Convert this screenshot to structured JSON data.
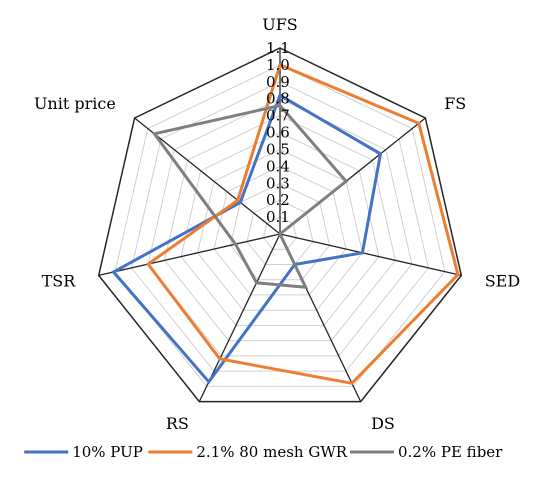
{
  "chart_data": {
    "type": "radar",
    "axes": [
      "UFS",
      "FS",
      "SED",
      "DS",
      "RS",
      "TSR",
      "Unit price"
    ],
    "ticks": [
      "0.1",
      "0.2",
      "0.3",
      "0.4",
      "0.5",
      "0.6",
      "0.7",
      "0.8",
      "0.9",
      "1.0",
      "1.1"
    ],
    "range": [
      0,
      1.1
    ],
    "grid": true,
    "legend_position": "bottom",
    "series": [
      {
        "name": "10% PUP",
        "color": "#4472C4",
        "values": [
          0.82,
          0.76,
          0.5,
          0.2,
          0.97,
          1.01,
          0.3
        ]
      },
      {
        "name": "2.1% 80 mesh GWR",
        "color": "#ED7D31",
        "values": [
          1.0,
          1.05,
          1.08,
          0.98,
          0.82,
          0.8,
          0.32
        ]
      },
      {
        "name": "0.2% PE fiber",
        "color": "#7F7F7F",
        "values": [
          0.76,
          0.5,
          0.0,
          0.35,
          0.32,
          0.27,
          0.95
        ]
      }
    ]
  }
}
